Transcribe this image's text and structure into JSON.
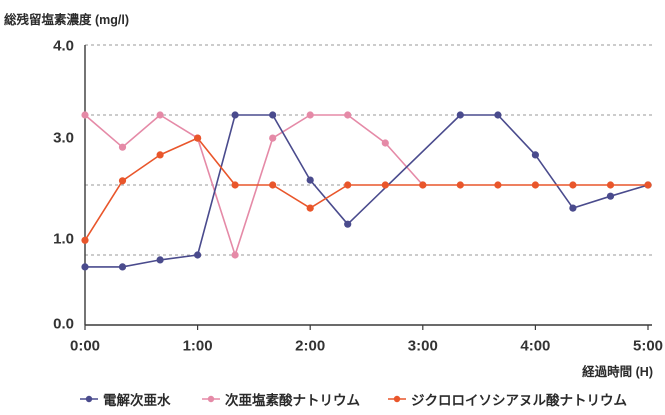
{
  "chart_data": {
    "type": "line",
    "ylabel": "総残留塩素濃度 (mg/l)",
    "xlabel": "経過時間 (H)",
    "x_ticks": [
      "0:00",
      "1:00",
      "2:00",
      "3:00",
      "4:00",
      "5:00"
    ],
    "y_ticks": [
      "4.0",
      "3.0",
      "1.0",
      "0.0"
    ],
    "xlim": [
      "0:00",
      "5:00"
    ],
    "ylim": [
      0,
      4
    ],
    "grid": true,
    "legend": "bottom",
    "series": [
      {
        "name": "電解次亜水",
        "color": "#4a4b8d",
        "points": [
          [
            "0:00",
            0.83
          ],
          [
            "0:20",
            0.83
          ],
          [
            "0:40",
            0.93
          ],
          [
            "1:00",
            1.0
          ],
          [
            "1:20",
            3.0
          ],
          [
            "1:40",
            3.0
          ],
          [
            "2:00",
            2.07
          ],
          [
            "2:20",
            1.44
          ],
          [
            "3:20",
            3.0
          ],
          [
            "3:40",
            3.0
          ],
          [
            "4:00",
            2.43
          ],
          [
            "4:20",
            1.67
          ],
          [
            "4:40",
            1.84
          ],
          [
            "5:00",
            2.0
          ]
        ]
      },
      {
        "name": "次亜塩素酸ナトリウム",
        "color": "#e58aa7",
        "points": [
          [
            "0:00",
            3.0
          ],
          [
            "0:20",
            2.54
          ],
          [
            "0:40",
            3.0
          ],
          [
            "1:00",
            2.67
          ],
          [
            "1:20",
            1.0
          ],
          [
            "1:40",
            2.67
          ],
          [
            "2:00",
            3.0
          ],
          [
            "2:20",
            3.0
          ],
          [
            "2:40",
            2.6
          ],
          [
            "3:00",
            2.0
          ]
        ]
      },
      {
        "name": "ジクロロイソシアヌル酸ナトリウム",
        "color": "#e9562b",
        "points": [
          [
            "0:00",
            1.21
          ],
          [
            "0:20",
            2.06
          ],
          [
            "0:40",
            2.43
          ],
          [
            "1:00",
            2.67
          ],
          [
            "1:20",
            2.0
          ],
          [
            "1:40",
            2.0
          ],
          [
            "2:00",
            1.67
          ],
          [
            "2:20",
            2.0
          ],
          [
            "2:40",
            2.0
          ],
          [
            "3:00",
            2.0
          ],
          [
            "3:20",
            2.0
          ],
          [
            "3:40",
            2.0
          ],
          [
            "4:00",
            2.0
          ],
          [
            "4:20",
            2.0
          ],
          [
            "4:40",
            2.0
          ],
          [
            "5:00",
            2.0
          ]
        ]
      }
    ]
  }
}
